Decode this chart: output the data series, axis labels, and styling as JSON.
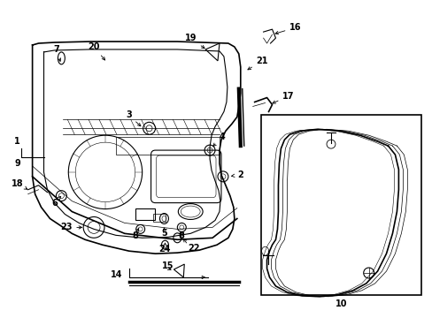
{
  "bg_color": "#ffffff",
  "line_color": "#000000",
  "gray": "#888888"
}
